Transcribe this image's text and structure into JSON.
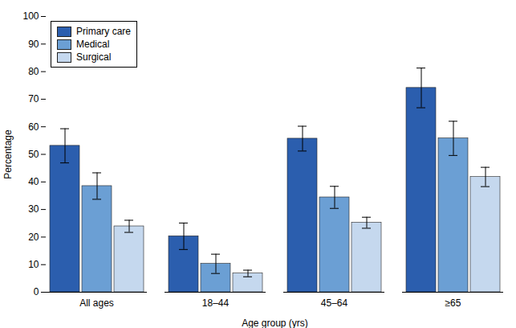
{
  "chart_data": {
    "type": "bar",
    "categories": [
      "All ages",
      "18–44",
      "45–64",
      "≥65"
    ],
    "series": [
      {
        "name": "Primary care",
        "color": "#2b5eae",
        "values": [
          53.1,
          20.3,
          55.7,
          74.1
        ],
        "errors": [
          6.2,
          4.8,
          4.5,
          7.2
        ]
      },
      {
        "name": "Medical",
        "color": "#6b9fd4",
        "values": [
          38.5,
          10.3,
          34.4,
          55.8
        ],
        "errors": [
          4.8,
          3.5,
          4.0,
          6.2
        ]
      },
      {
        "name": "Surgical",
        "color": "#c5d8ee",
        "values": [
          23.9,
          6.8,
          25.2,
          41.8
        ],
        "errors": [
          2.2,
          1.2,
          2.0,
          3.5
        ]
      }
    ],
    "xlabel": "Age group (yrs)",
    "ylabel": "Percentage",
    "ylim": [
      0,
      100
    ],
    "yticks": [
      0,
      10,
      20,
      30,
      40,
      50,
      60,
      70,
      80,
      90,
      100
    ],
    "grid": false,
    "legend": "upper left"
  }
}
